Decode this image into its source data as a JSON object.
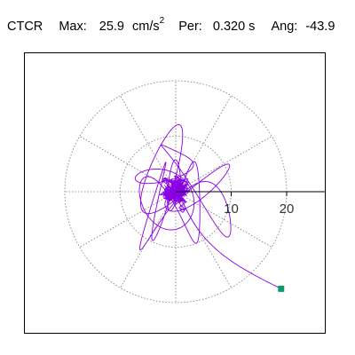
{
  "header": {
    "station": "CTCR",
    "max_label": "Max:",
    "max_value": "25.9",
    "max_unit": "cm/s",
    "max_unit_exp": "2",
    "per_label": "Per:",
    "per_value": "0.320 s",
    "ang_label": "Ang:",
    "ang_value": "-43.9"
  },
  "chart_data": {
    "type": "polar-trajectory",
    "radial_ticks": [
      10,
      20
    ],
    "radial_tick_labels": [
      "10",
      "20"
    ],
    "radial_max": 20,
    "axis_direction": "+x to the right",
    "axis_angle_deg": 0,
    "grid": "dotted concentric circles at 10 and 20, radial spokes every 30 degrees",
    "trajectory_color": "#8a00e6",
    "end_marker_color": "#0a9a6e",
    "end_point": {
      "x": 19.0,
      "y": -17.5
    },
    "peak_value": 25.9,
    "peak_unit": "cm/s2",
    "period_s": 0.32,
    "angle_deg": -43.9,
    "reference_line": {
      "from_x": 0,
      "to_x": 27.5,
      "y": 0
    }
  }
}
